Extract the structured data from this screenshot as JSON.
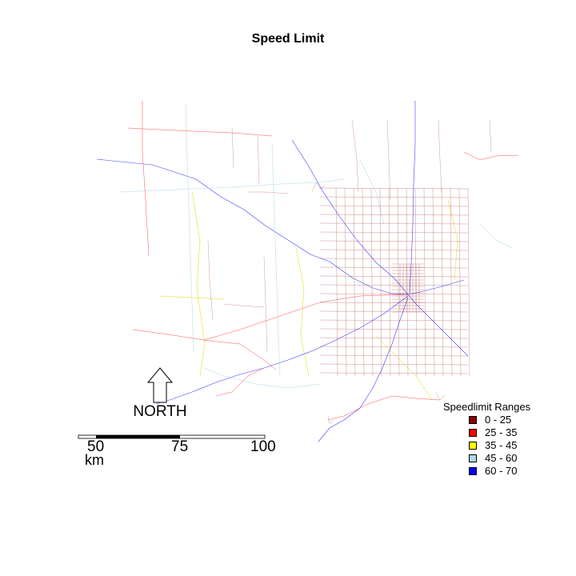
{
  "title": "Speed Limit",
  "north_arrow": {
    "label": "NORTH",
    "icon": "north-arrow-icon"
  },
  "scale_bar": {
    "ticks": [
      "50",
      "75",
      "100"
    ],
    "unit": "km"
  },
  "legend": {
    "title": "Speedlimit Ranges",
    "items": [
      {
        "label": "0 - 25",
        "color": "#8b0000"
      },
      {
        "label": "25 - 35",
        "color": "#ff0000"
      },
      {
        "label": "35 - 45",
        "color": "#ffff00"
      },
      {
        "label": "45 - 60",
        "color": "#add8e6"
      },
      {
        "label": "60 - 70",
        "color": "#0000ff"
      }
    ]
  }
}
